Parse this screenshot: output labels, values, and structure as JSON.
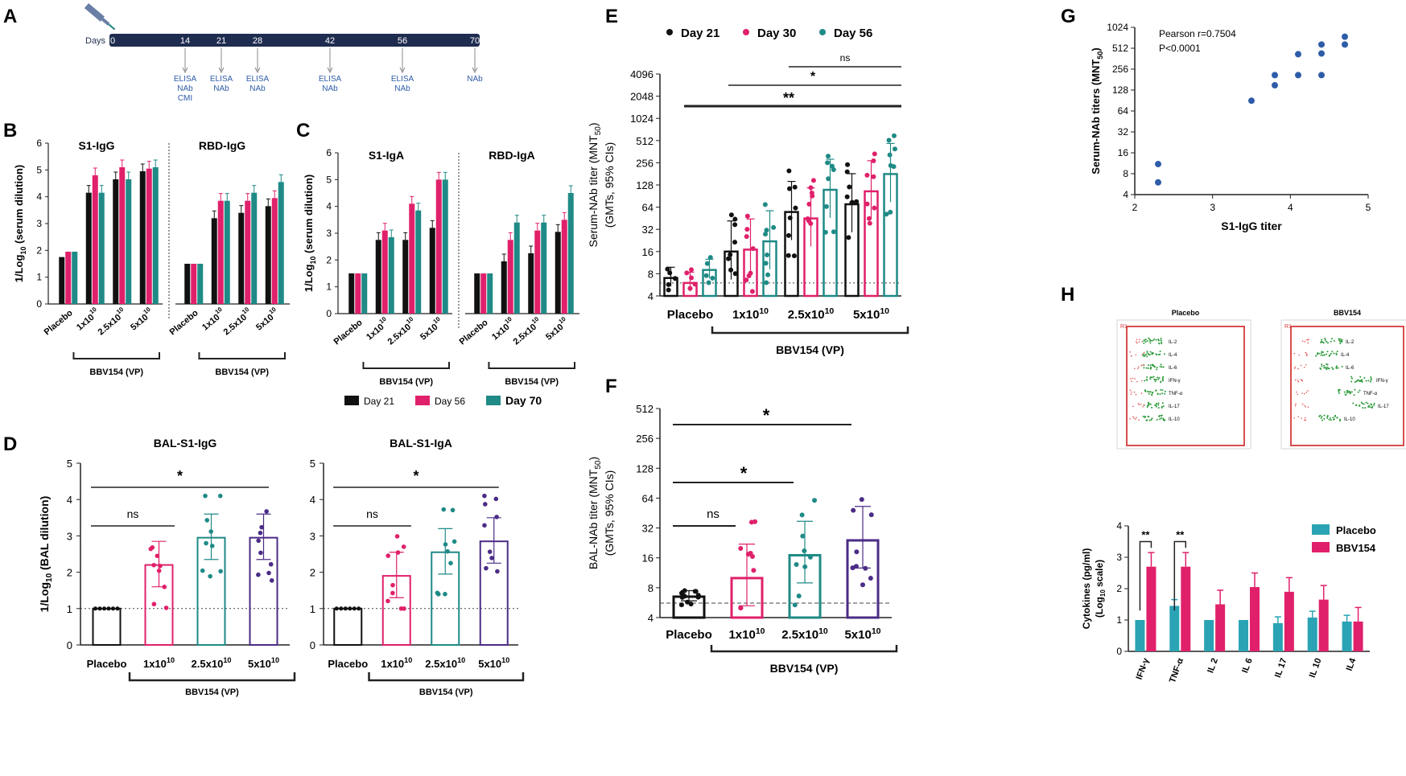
{
  "figure": {
    "colors": {
      "day21": "#111111",
      "day30": "#e0206a",
      "day56": "#17837d",
      "day70": "#1f8a86",
      "pink": "#e0206a",
      "teal": "#1f8a86",
      "purple": "#4b2c86",
      "blue": "#2e5ca8",
      "placebo_cyan": "#2aa3b5",
      "navy": "#1e2c4f"
    }
  },
  "panelA": {
    "label": "A",
    "days_label": "Days",
    "days": [
      "0",
      "14",
      "21",
      "28",
      "42",
      "56",
      "70"
    ],
    "assays": [
      "ELISA\nNAb\nCMI",
      "ELISA\nNAb",
      "ELISA\nNAb",
      "ELISA\nNAb",
      "ELISA\nNAb",
      "NAb"
    ]
  },
  "panelB": {
    "label": "B",
    "chart_data": {
      "type": "bar",
      "title_left": "S1-IgG",
      "title_right": "RBD-IgG",
      "ylabel": "1/Log10 (serum dilution)",
      "ylim": [
        0,
        6
      ],
      "categories": [
        "Placebo",
        "1x10^10",
        "2.5x10^10",
        "5x10^10"
      ],
      "group_label": "BBV154 (VP)",
      "series": [
        {
          "name": "Day 21",
          "s1": [
            1.75,
            4.15,
            4.65,
            4.95
          ],
          "rbd": [
            1.5,
            3.2,
            3.4,
            3.65
          ]
        },
        {
          "name": "Day 56",
          "s1": [
            1.95,
            4.8,
            5.1,
            5.05
          ],
          "rbd": [
            1.5,
            3.85,
            3.85,
            3.95
          ]
        },
        {
          "name": "Day 70",
          "s1": [
            1.95,
            4.15,
            4.65,
            5.1
          ],
          "rbd": [
            1.5,
            3.85,
            4.15,
            4.55
          ]
        }
      ]
    }
  },
  "panelC": {
    "label": "C",
    "chart_data": {
      "type": "bar",
      "title_left": "S1-IgA",
      "title_right": "RBD-IgA",
      "ylabel": "1/Log10 (serum dilution)",
      "ylim": [
        0,
        6
      ],
      "categories": [
        "Placebo",
        "1x10^10",
        "2.5x10^10",
        "5x10^10"
      ],
      "group_label": "BBV154 (VP)",
      "series": [
        {
          "name": "Day 21",
          "s1": [
            1.5,
            2.75,
            2.75,
            3.2
          ],
          "rbd": [
            1.5,
            1.95,
            2.25,
            3.05
          ]
        },
        {
          "name": "Day 56",
          "s1": [
            1.5,
            3.1,
            4.1,
            5.0
          ],
          "rbd": [
            1.5,
            2.75,
            3.1,
            3.5
          ]
        },
        {
          "name": "Day 70",
          "s1": [
            1.5,
            2.85,
            3.85,
            5.0
          ],
          "rbd": [
            1.5,
            3.4,
            3.4,
            4.5
          ]
        }
      ]
    },
    "legend": [
      "Day 21",
      "Day 56",
      "Day 70"
    ]
  },
  "panelD": {
    "label": "D",
    "chart_data": [
      {
        "type": "bar",
        "title": "BAL-S1-IgG",
        "ylabel": "1/Log10 (BAL dilution)",
        "ylim": [
          0,
          5
        ],
        "categories": [
          "Placebo",
          "1x10^10",
          "2.5x10^10",
          "5x10^10"
        ],
        "values": [
          1.0,
          2.2,
          2.95,
          2.95
        ],
        "ns": "ns",
        "star": "*",
        "group_label": "BBV154 (VP)"
      },
      {
        "type": "bar",
        "title": "BAL-S1-IgA",
        "ylabel": "",
        "ylim": [
          0,
          5
        ],
        "categories": [
          "Placebo",
          "1x10^10",
          "2.5x10^10",
          "5x10^10"
        ],
        "values": [
          1.0,
          1.9,
          2.55,
          2.85
        ],
        "ns": "ns",
        "star": "*",
        "group_label": "BBV154 (VP)"
      }
    ]
  },
  "panelE": {
    "label": "E",
    "chart_data": {
      "type": "bar",
      "ylabel": "Serum-NAb titer (MNT50)",
      "ylabel2": "(GMTs, 95% CIs)",
      "yticks": [
        "4",
        "8",
        "16",
        "32",
        "64",
        "128",
        "256",
        "512",
        "1024",
        "2048",
        "4096"
      ],
      "categories": [
        "Placebo",
        "1x10^10",
        "2.5x10^10",
        "5x10^10"
      ],
      "series": [
        {
          "name": "Day 21",
          "values": [
            7,
            16,
            55,
            70
          ]
        },
        {
          "name": "Day 30",
          "values": [
            6,
            17,
            45,
            105
          ]
        },
        {
          "name": "Day 56",
          "values": [
            9,
            22,
            110,
            180
          ]
        }
      ],
      "sig": [
        "**",
        "*",
        "ns"
      ],
      "group_label": "BBV154 (VP)"
    }
  },
  "panelF": {
    "label": "F",
    "chart_data": {
      "type": "bar",
      "ylabel": "BAL-NAb titer (MNT50)",
      "ylabel2": "(GMTs, 95% CIs)",
      "yticks": [
        "4",
        "8",
        "16",
        "32",
        "64",
        "128",
        "256",
        "512"
      ],
      "categories": [
        "Placebo",
        "1x10^10",
        "2.5x10^10",
        "5x10^10"
      ],
      "values": [
        6.5,
        10,
        17,
        24
      ],
      "sig": [
        "ns",
        "*",
        "*"
      ],
      "group_label": "BBV154 (VP)"
    }
  },
  "panelG": {
    "label": "G",
    "chart_data": {
      "type": "scatter",
      "xlabel": "S1-IgG titer",
      "ylabel": "Serum-NAb titers (MNT50)",
      "xlim": [
        2,
        5
      ],
      "yticks": [
        "4",
        "8",
        "16",
        "32",
        "64",
        "128",
        "256",
        "512",
        "1024"
      ],
      "annotation1": "Pearson r=0.7504",
      "annotation2": "P<0.0001",
      "points": [
        [
          2.3,
          11
        ],
        [
          2.3,
          6
        ],
        [
          3.5,
          90
        ],
        [
          3.8,
          210
        ],
        [
          3.8,
          150
        ],
        [
          4.1,
          210
        ],
        [
          4.1,
          420
        ],
        [
          4.4,
          210
        ],
        [
          4.4,
          430
        ],
        [
          4.4,
          580
        ],
        [
          4.7,
          580
        ],
        [
          4.7,
          750
        ]
      ]
    }
  },
  "panelH": {
    "label": "H",
    "flow_titles": [
      "Placebo",
      "BBV154"
    ],
    "flow_labels": [
      "IL-2",
      "IL-4",
      "IL-6",
      "IFN-γ",
      "TNF-α",
      "IL-17",
      "IL-10"
    ],
    "chart_data": {
      "type": "bar",
      "ylabel": "Cytokines (pg/ml)",
      "ylabel2": "(Log10 scale)",
      "ylim": [
        0,
        4
      ],
      "categories": [
        "IFN-γ",
        "TNF-α",
        "IL 2",
        "IL 6",
        "IL 17",
        "IL 10",
        "IL4"
      ],
      "series": [
        {
          "name": "Placebo",
          "values": [
            1.0,
            1.45,
            1.0,
            1.0,
            0.9,
            1.08,
            0.95
          ]
        },
        {
          "name": "BBV154",
          "values": [
            2.7,
            2.7,
            1.5,
            2.05,
            1.9,
            1.65,
            0.95
          ]
        }
      ],
      "sig": [
        "**",
        "**"
      ]
    }
  }
}
